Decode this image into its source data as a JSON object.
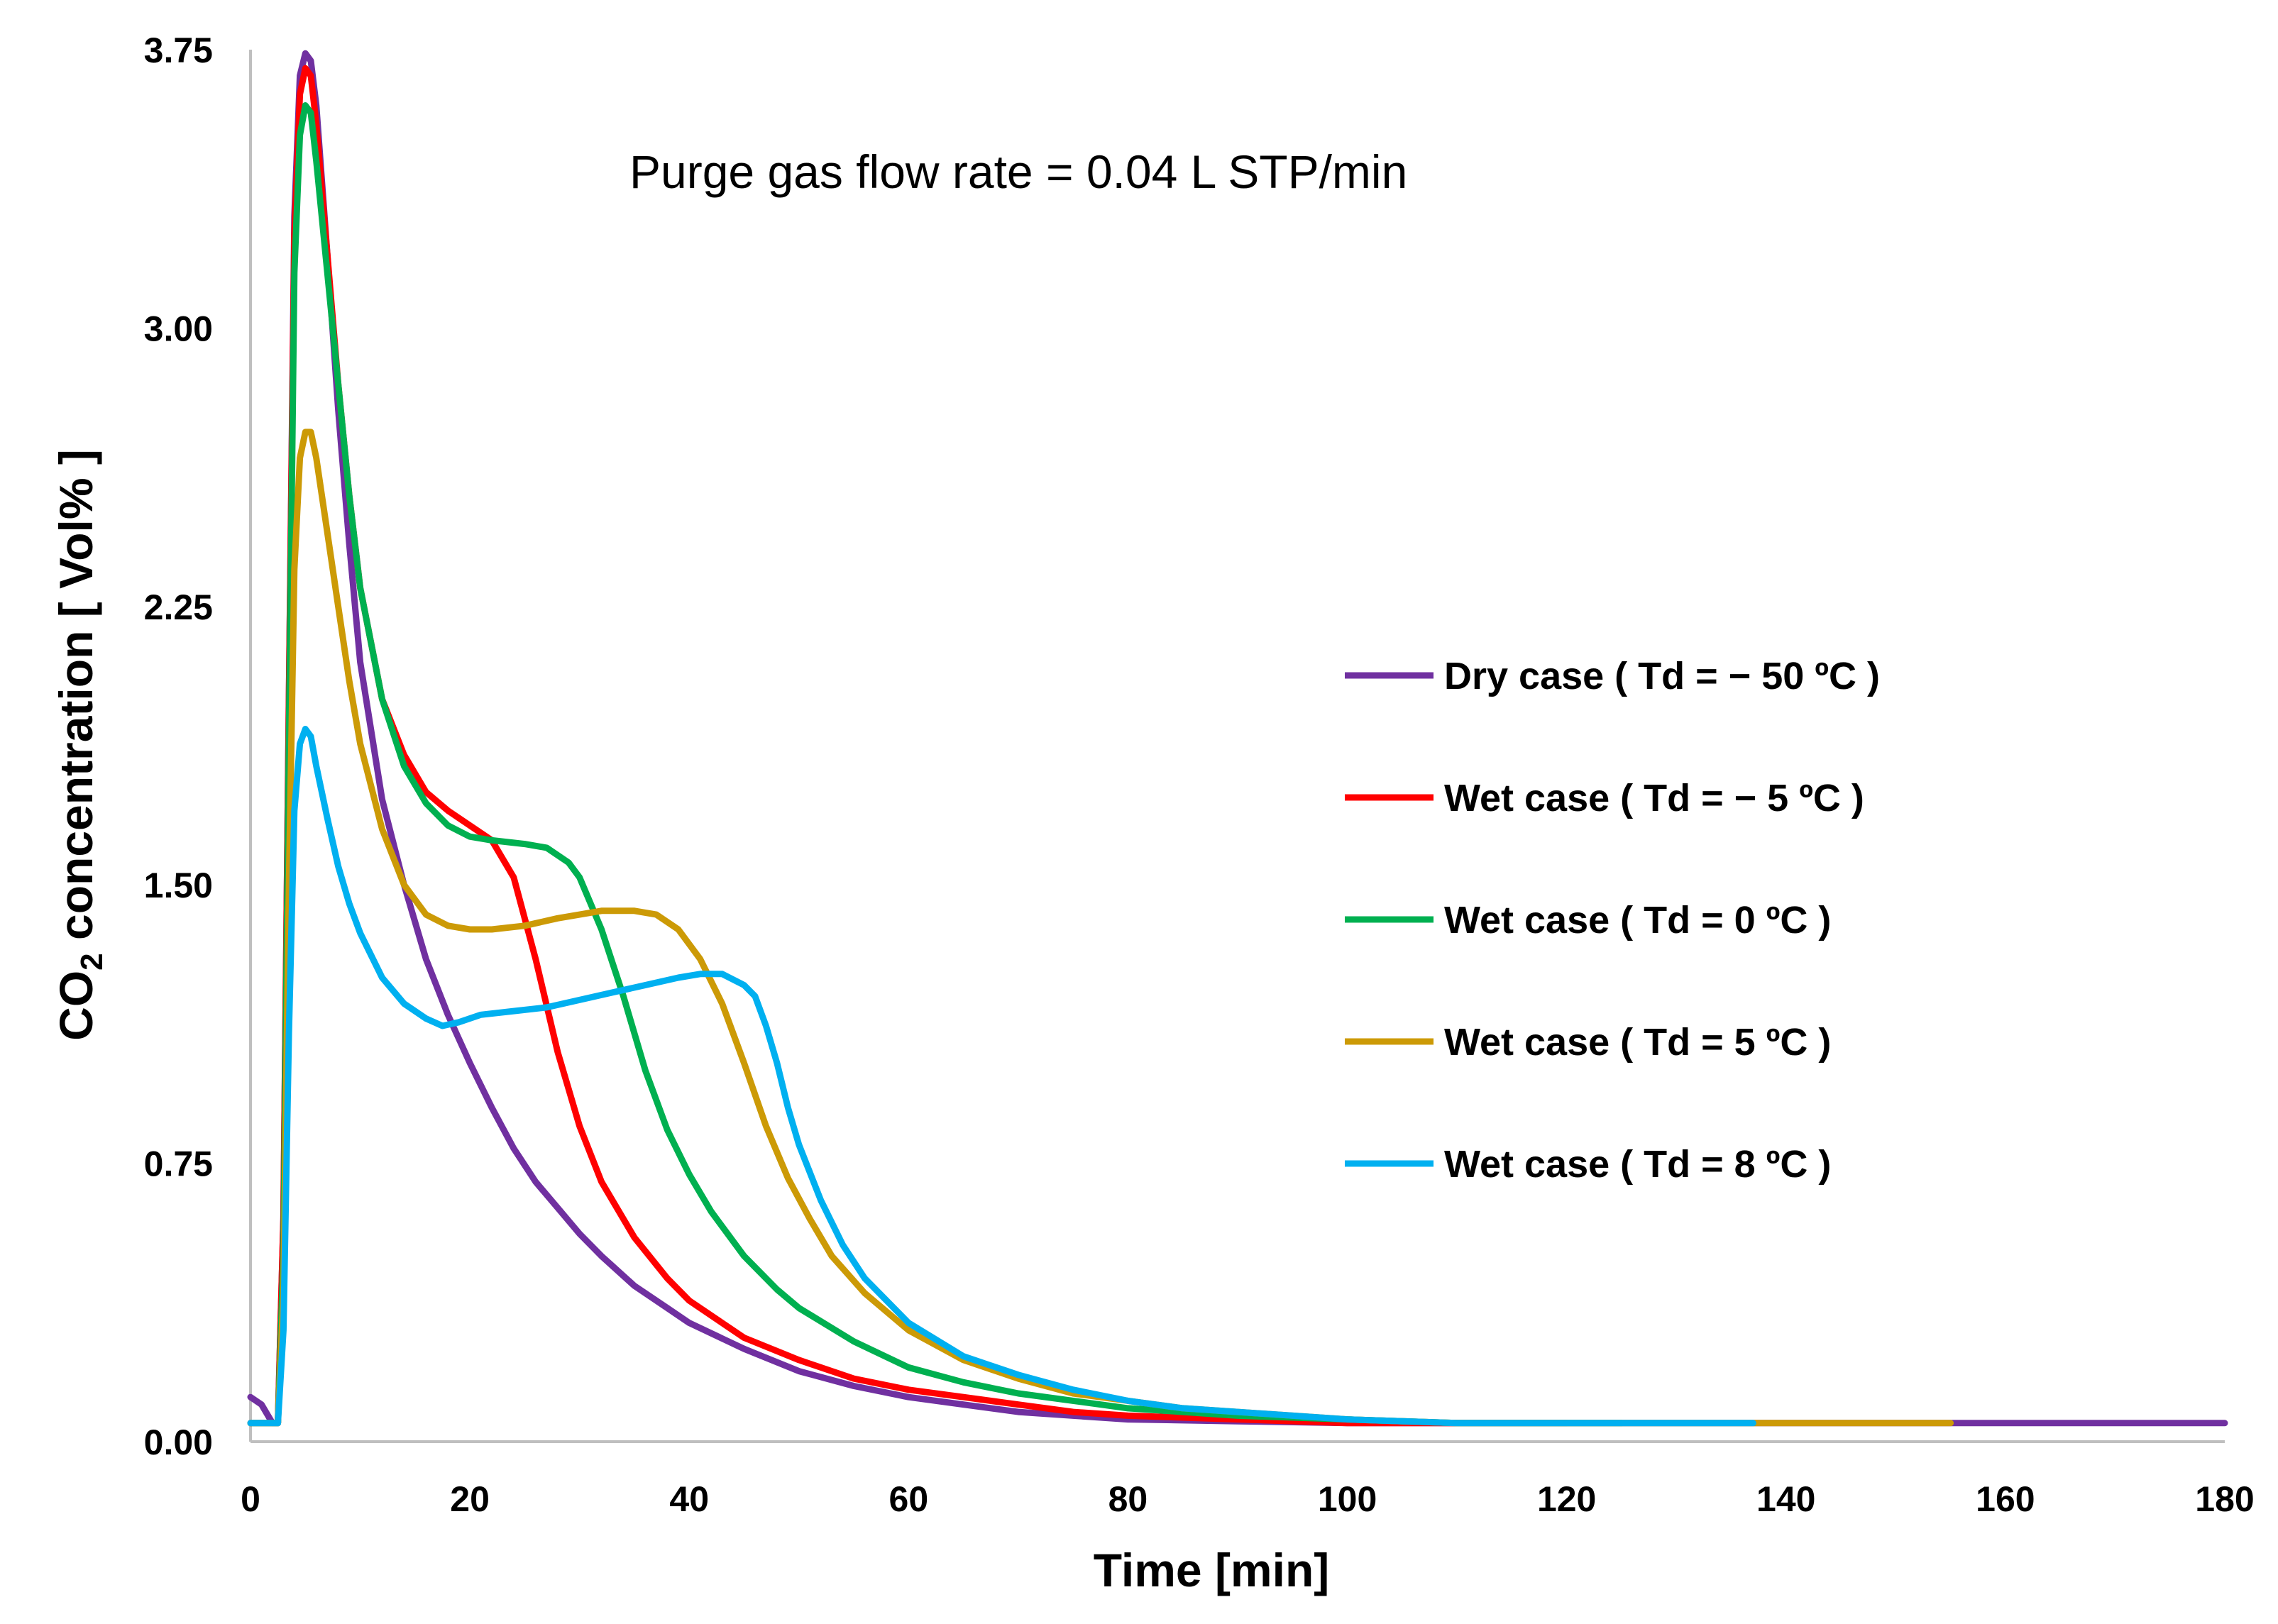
{
  "chart_data": {
    "type": "line",
    "title": "",
    "annotation": "Purge gas flow rate = 0.04 L STP/min",
    "xlabel": "Time [min]",
    "ylabel_main": "CO",
    "ylabel_sub": "2",
    "ylabel_rest": " concentration [ Vol% ]",
    "xlim": [
      0,
      180
    ],
    "ylim": [
      0,
      3.75
    ],
    "x_ticks": [
      "0",
      "20",
      "40",
      "60",
      "80",
      "100",
      "120",
      "140",
      "160",
      "180"
    ],
    "y_ticks": [
      "0.00",
      "0.75",
      "1.50",
      "2.25",
      "3.00",
      "3.75"
    ],
    "grid": false,
    "legend_position": "right",
    "series": [
      {
        "name": "Dry case ( Td = − 50 ºC )",
        "color": "#7030A0",
        "points": [
          [
            0,
            0.12
          ],
          [
            1,
            0.1
          ],
          [
            2,
            0.05
          ],
          [
            2.5,
            0.05
          ],
          [
            3,
            0.6
          ],
          [
            3.5,
            2.0
          ],
          [
            4,
            3.3
          ],
          [
            4.5,
            3.68
          ],
          [
            5,
            3.74
          ],
          [
            5.5,
            3.72
          ],
          [
            6,
            3.6
          ],
          [
            7,
            3.2
          ],
          [
            8,
            2.78
          ],
          [
            9,
            2.42
          ],
          [
            10,
            2.1
          ],
          [
            12,
            1.73
          ],
          [
            14,
            1.5
          ],
          [
            16,
            1.3
          ],
          [
            18,
            1.15
          ],
          [
            20,
            1.02
          ],
          [
            22,
            0.9
          ],
          [
            24,
            0.79
          ],
          [
            26,
            0.7
          ],
          [
            28,
            0.63
          ],
          [
            30,
            0.56
          ],
          [
            32,
            0.5
          ],
          [
            35,
            0.42
          ],
          [
            38,
            0.36
          ],
          [
            40,
            0.32
          ],
          [
            45,
            0.25
          ],
          [
            50,
            0.19
          ],
          [
            55,
            0.15
          ],
          [
            60,
            0.12
          ],
          [
            65,
            0.1
          ],
          [
            70,
            0.08
          ],
          [
            75,
            0.07
          ],
          [
            80,
            0.06
          ],
          [
            90,
            0.055
          ],
          [
            100,
            0.05
          ],
          [
            110,
            0.05
          ],
          [
            120,
            0.05
          ],
          [
            140,
            0.05
          ],
          [
            160,
            0.05
          ],
          [
            180,
            0.05
          ]
        ]
      },
      {
        "name": "Wet case ( Td = − 5 ºC )",
        "color": "#FF0000",
        "points": [
          [
            0,
            0.05
          ],
          [
            2.5,
            0.05
          ],
          [
            3,
            0.6
          ],
          [
            3.5,
            2.0
          ],
          [
            4,
            3.25
          ],
          [
            4.5,
            3.63
          ],
          [
            5,
            3.7
          ],
          [
            5.5,
            3.68
          ],
          [
            6,
            3.55
          ],
          [
            7,
            3.2
          ],
          [
            8,
            2.85
          ],
          [
            9,
            2.55
          ],
          [
            10,
            2.3
          ],
          [
            12,
            2.0
          ],
          [
            14,
            1.85
          ],
          [
            16,
            1.75
          ],
          [
            18,
            1.7
          ],
          [
            20,
            1.66
          ],
          [
            22,
            1.62
          ],
          [
            24,
            1.52
          ],
          [
            26,
            1.3
          ],
          [
            28,
            1.05
          ],
          [
            30,
            0.85
          ],
          [
            32,
            0.7
          ],
          [
            35,
            0.55
          ],
          [
            38,
            0.44
          ],
          [
            40,
            0.38
          ],
          [
            45,
            0.28
          ],
          [
            50,
            0.22
          ],
          [
            55,
            0.17
          ],
          [
            60,
            0.14
          ],
          [
            65,
            0.12
          ],
          [
            70,
            0.1
          ],
          [
            75,
            0.08
          ],
          [
            80,
            0.07
          ],
          [
            90,
            0.06
          ],
          [
            100,
            0.05
          ],
          [
            110,
            0.05
          ],
          [
            120,
            0.05
          ]
        ]
      },
      {
        "name": "Wet case ( Td = 0 ºC )",
        "color": "#00B050",
        "points": [
          [
            0,
            0.05
          ],
          [
            2.5,
            0.05
          ],
          [
            3,
            0.5
          ],
          [
            3.5,
            1.9
          ],
          [
            4,
            3.15
          ],
          [
            4.5,
            3.52
          ],
          [
            5,
            3.6
          ],
          [
            5.5,
            3.58
          ],
          [
            6,
            3.45
          ],
          [
            7,
            3.15
          ],
          [
            8,
            2.85
          ],
          [
            9,
            2.55
          ],
          [
            10,
            2.3
          ],
          [
            12,
            2.0
          ],
          [
            14,
            1.82
          ],
          [
            16,
            1.72
          ],
          [
            18,
            1.66
          ],
          [
            20,
            1.63
          ],
          [
            22,
            1.62
          ],
          [
            25,
            1.61
          ],
          [
            27,
            1.6
          ],
          [
            29,
            1.56
          ],
          [
            30,
            1.52
          ],
          [
            32,
            1.38
          ],
          [
            34,
            1.2
          ],
          [
            36,
            1.0
          ],
          [
            38,
            0.84
          ],
          [
            40,
            0.72
          ],
          [
            42,
            0.62
          ],
          [
            45,
            0.5
          ],
          [
            48,
            0.41
          ],
          [
            50,
            0.36
          ],
          [
            55,
            0.27
          ],
          [
            60,
            0.2
          ],
          [
            65,
            0.16
          ],
          [
            70,
            0.13
          ],
          [
            75,
            0.11
          ],
          [
            80,
            0.09
          ],
          [
            85,
            0.08
          ],
          [
            90,
            0.07
          ],
          [
            100,
            0.06
          ],
          [
            110,
            0.05
          ],
          [
            120,
            0.05
          ],
          [
            125,
            0.05
          ]
        ]
      },
      {
        "name": "Wet case ( Td = 5 ºC )",
        "color": "#CC9A06",
        "points": [
          [
            0,
            0.05
          ],
          [
            2.5,
            0.05
          ],
          [
            3,
            0.4
          ],
          [
            3.5,
            1.5
          ],
          [
            4,
            2.35
          ],
          [
            4.5,
            2.65
          ],
          [
            5,
            2.72
          ],
          [
            5.5,
            2.72
          ],
          [
            6,
            2.65
          ],
          [
            7,
            2.45
          ],
          [
            8,
            2.25
          ],
          [
            9,
            2.05
          ],
          [
            10,
            1.88
          ],
          [
            12,
            1.65
          ],
          [
            14,
            1.5
          ],
          [
            16,
            1.42
          ],
          [
            18,
            1.39
          ],
          [
            20,
            1.38
          ],
          [
            22,
            1.38
          ],
          [
            25,
            1.39
          ],
          [
            28,
            1.41
          ],
          [
            30,
            1.42
          ],
          [
            32,
            1.43
          ],
          [
            35,
            1.43
          ],
          [
            37,
            1.42
          ],
          [
            39,
            1.38
          ],
          [
            41,
            1.3
          ],
          [
            43,
            1.18
          ],
          [
            45,
            1.02
          ],
          [
            47,
            0.85
          ],
          [
            49,
            0.71
          ],
          [
            51,
            0.6
          ],
          [
            53,
            0.5
          ],
          [
            56,
            0.4
          ],
          [
            60,
            0.3
          ],
          [
            65,
            0.22
          ],
          [
            70,
            0.17
          ],
          [
            75,
            0.13
          ],
          [
            80,
            0.11
          ],
          [
            85,
            0.09
          ],
          [
            90,
            0.08
          ],
          [
            100,
            0.06
          ],
          [
            110,
            0.05
          ],
          [
            120,
            0.05
          ],
          [
            140,
            0.05
          ],
          [
            155,
            0.05
          ]
        ]
      },
      {
        "name": "Wet case ( Td = 8 ºC )",
        "color": "#00B0F0",
        "points": [
          [
            0,
            0.05
          ],
          [
            2.5,
            0.05
          ],
          [
            3,
            0.3
          ],
          [
            3.5,
            1.1
          ],
          [
            4,
            1.7
          ],
          [
            4.5,
            1.88
          ],
          [
            5,
            1.92
          ],
          [
            5.5,
            1.9
          ],
          [
            6,
            1.82
          ],
          [
            7,
            1.68
          ],
          [
            8,
            1.55
          ],
          [
            9,
            1.45
          ],
          [
            10,
            1.37
          ],
          [
            12,
            1.25
          ],
          [
            14,
            1.18
          ],
          [
            16,
            1.14
          ],
          [
            17.5,
            1.12
          ],
          [
            19,
            1.13
          ],
          [
            21,
            1.15
          ],
          [
            24,
            1.16
          ],
          [
            27,
            1.17
          ],
          [
            30,
            1.19
          ],
          [
            33,
            1.21
          ],
          [
            36,
            1.23
          ],
          [
            39,
            1.25
          ],
          [
            41,
            1.26
          ],
          [
            43,
            1.26
          ],
          [
            45,
            1.23
          ],
          [
            46,
            1.2
          ],
          [
            47,
            1.12
          ],
          [
            48,
            1.02
          ],
          [
            49,
            0.9
          ],
          [
            50,
            0.8
          ],
          [
            52,
            0.65
          ],
          [
            54,
            0.53
          ],
          [
            56,
            0.44
          ],
          [
            60,
            0.32
          ],
          [
            65,
            0.23
          ],
          [
            70,
            0.18
          ],
          [
            75,
            0.14
          ],
          [
            80,
            0.11
          ],
          [
            85,
            0.09
          ],
          [
            90,
            0.08
          ],
          [
            100,
            0.06
          ],
          [
            110,
            0.05
          ],
          [
            120,
            0.05
          ],
          [
            137,
            0.05
          ]
        ]
      }
    ]
  }
}
